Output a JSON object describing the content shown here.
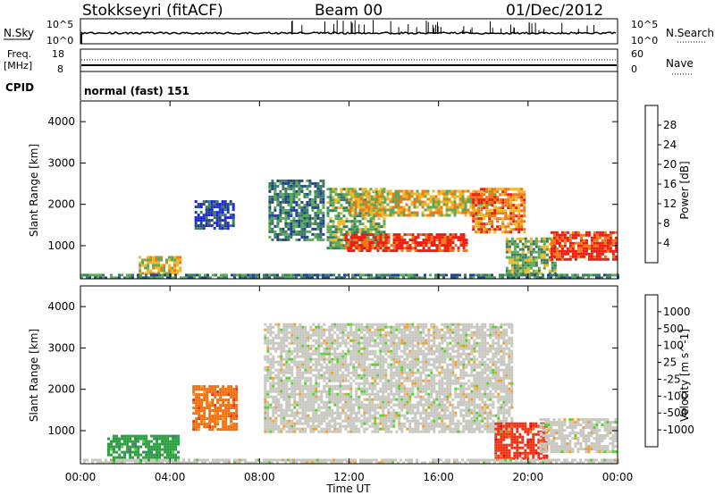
{
  "header": {
    "station": "Stokkseyri (fitACF)",
    "beam": "Beam 00",
    "date": "01/Dec/2012",
    "cpid_label": "CPID",
    "cpid_value": "normal (fast) 151"
  },
  "strip_panels": {
    "nsky_label": "N.Sky",
    "nsky_ticks": [
      "10^5",
      "10^0"
    ],
    "nsearch_label": "N.Search",
    "nsearch_ticks": [
      "10^5",
      "10^0"
    ],
    "freq_label": "Freq.",
    "freq_unit": "[MHz]",
    "freq_ticks": [
      "18",
      "8"
    ],
    "nave_label": "Nave",
    "nave_ticks": [
      "60",
      "0"
    ]
  },
  "chart_data": [
    {
      "type": "heatmap",
      "xlabel": "",
      "ylabel": "Slant Range [km]",
      "y_ticks": [
        "4000",
        "3000",
        "2000",
        "1000"
      ],
      "ylim": [
        200,
        4500
      ],
      "xlim_hours": [
        0,
        24
      ],
      "colorbar_label": "Power [dB]",
      "colorbar_ticks": [
        "28",
        "24",
        "20",
        "16",
        "12",
        "8",
        "4"
      ],
      "colorbar_range": [
        0,
        32
      ],
      "colors": [
        "#1c1cf0",
        "#22448c",
        "#3c7c64",
        "#5aaa58",
        "#f0b828",
        "#f07818",
        "#f01c10"
      ],
      "regions": [
        {
          "t0": 2.6,
          "t1": 4.4,
          "r0": 350,
          "r1": 750,
          "power": 22
        },
        {
          "t0": 5.1,
          "t1": 6.8,
          "r0": 1400,
          "r1": 2100,
          "power": 8
        },
        {
          "t0": 8.4,
          "t1": 10.8,
          "r0": 1150,
          "r1": 2600,
          "power": 12
        },
        {
          "t0": 11.0,
          "t1": 13.6,
          "r0": 950,
          "r1": 2400,
          "power": 18
        },
        {
          "t0": 11.8,
          "t1": 17.2,
          "r0": 900,
          "r1": 1300,
          "power": 28
        },
        {
          "t0": 12.0,
          "t1": 18.5,
          "r0": 1750,
          "r1": 2350,
          "power": 20
        },
        {
          "t0": 17.5,
          "t1": 19.8,
          "r0": 1300,
          "r1": 2400,
          "power": 24
        },
        {
          "t0": 19.0,
          "t1": 21.2,
          "r0": 300,
          "r1": 1200,
          "power": 18
        },
        {
          "t0": 21.0,
          "t1": 23.9,
          "r0": 700,
          "r1": 1350,
          "power": 28
        },
        {
          "t0": 0.0,
          "t1": 24.0,
          "r0": 200,
          "r1": 320,
          "power": 10
        }
      ]
    },
    {
      "type": "heatmap",
      "xlabel": "Time UT",
      "ylabel": "Slant Range [km]",
      "x_ticks": [
        "00:00",
        "04:00",
        "08:00",
        "12:00",
        "16:00",
        "20:00",
        "00:00"
      ],
      "y_ticks": [
        "4000",
        "3000",
        "2000",
        "1000"
      ],
      "ylim": [
        200,
        4500
      ],
      "xlim_hours": [
        0,
        24
      ],
      "colorbar_label": "Velocity [m s^-1]",
      "colorbar_ticks": [
        "1000",
        "500",
        "100",
        "25",
        "-25",
        "-100",
        "-500",
        "-1000"
      ],
      "colors": [
        "#2040c0",
        "#3c7c64",
        "#2ca040",
        "#5ad030",
        "#c8c8c0",
        "#f0a030",
        "#f07010",
        "#f03010",
        "#e01010"
      ],
      "regions": [
        {
          "t0": 1.2,
          "t1": 4.4,
          "r0": 300,
          "r1": 900,
          "velocity": 200
        },
        {
          "t0": 5.0,
          "t1": 7.0,
          "r0": 1000,
          "r1": 2100,
          "velocity": -150
        },
        {
          "t0": 8.2,
          "t1": 19.3,
          "r0": 950,
          "r1": 3600,
          "velocity": 0
        },
        {
          "t0": 18.5,
          "t1": 20.8,
          "r0": 300,
          "r1": 1200,
          "velocity": -500
        },
        {
          "t0": 20.5,
          "t1": 23.9,
          "r0": 500,
          "r1": 1300,
          "velocity": 0
        },
        {
          "t0": 0.0,
          "t1": 24.0,
          "r0": 200,
          "r1": 320,
          "velocity": 0
        }
      ]
    }
  ]
}
